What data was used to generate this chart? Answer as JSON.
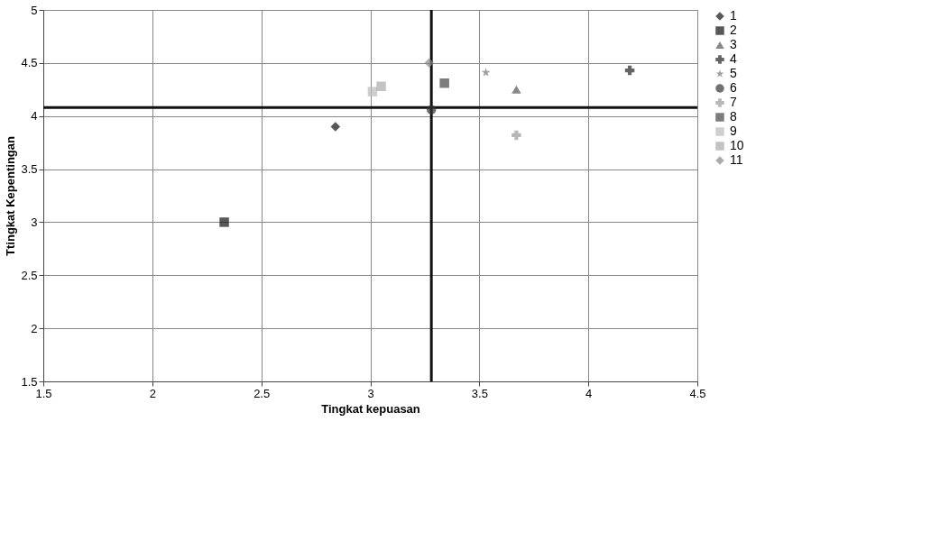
{
  "chart_data": {
    "type": "scatter",
    "xlabel": "Tingkat kepuasan",
    "ylabel": "Ttingkat Kepentingan",
    "xlim": [
      1.5,
      4.5
    ],
    "xticks": [
      1.5,
      2,
      2.5,
      3,
      3.5,
      4,
      4.5
    ],
    "ylim": [
      1.5,
      5
    ],
    "yticks": [
      1.5,
      2,
      2.5,
      3,
      3.5,
      4,
      4.5,
      5
    ],
    "grid": true,
    "legend": "right",
    "series": [
      {
        "name": "1",
        "color": "#111111",
        "marker": "diamond",
        "x": [
          2.84
        ],
        "values": [
          3.9
        ]
      },
      {
        "name": "2",
        "color": "#111111",
        "marker": "square",
        "x": [
          2.33
        ],
        "values": [
          3.0
        ]
      },
      {
        "name": "3",
        "color": "#555555",
        "marker": "triangle",
        "x": [
          3.67
        ],
        "values": [
          4.25
        ]
      },
      {
        "name": "4",
        "color": "#222222",
        "marker": "cross",
        "x": [
          4.19
        ],
        "values": [
          4.43
        ]
      },
      {
        "name": "5",
        "color": "#777777",
        "marker": "star",
        "x": [
          3.53
        ],
        "values": [
          4.41
        ]
      },
      {
        "name": "6",
        "color": "#333333",
        "marker": "circle",
        "x": [
          3.28
        ],
        "values": [
          4.06
        ]
      },
      {
        "name": "7",
        "color": "#999999",
        "marker": "cross",
        "x": [
          3.67
        ],
        "values": [
          3.82
        ]
      },
      {
        "name": "8",
        "color": "#444444",
        "marker": "square",
        "x": [
          3.34
        ],
        "values": [
          4.31
        ]
      },
      {
        "name": "9",
        "color": "#bbbbbb",
        "marker": "square",
        "x": [
          3.01
        ],
        "values": [
          4.23
        ]
      },
      {
        "name": "10",
        "color": "#aaaaaa",
        "marker": "square",
        "x": [
          3.05
        ],
        "values": [
          4.28
        ]
      },
      {
        "name": "11",
        "color": "#888888",
        "marker": "diamond",
        "x": [
          3.27
        ],
        "values": [
          4.5
        ]
      }
    ],
    "ref_lines": [
      {
        "axis": "x",
        "value": 3.28,
        "color": "#111111"
      },
      {
        "axis": "y",
        "value": 4.08,
        "color": "#111111"
      }
    ]
  }
}
